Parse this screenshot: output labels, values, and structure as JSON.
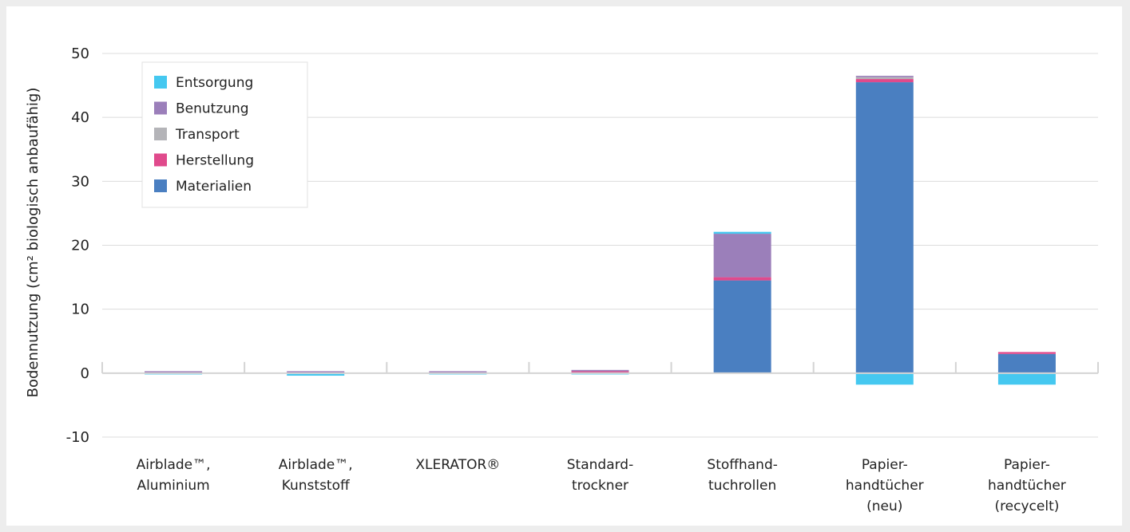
{
  "chart_data": {
    "type": "bar",
    "stacked": true,
    "ylabel": "Bodennutzung (cm² biologisch anbaufähig)",
    "ylim": [
      -10,
      50
    ],
    "yticks": [
      -10,
      0,
      10,
      20,
      30,
      40,
      50
    ],
    "grid": true,
    "legend_position": "top-left",
    "categories": [
      [
        "Airblade™,",
        "Aluminium"
      ],
      [
        "Airblade™,",
        "Kunststoff"
      ],
      [
        "XLERATOR®"
      ],
      [
        "Standard-",
        "trockner"
      ],
      [
        "Stoffhand-",
        "tuchrollen"
      ],
      [
        "Papier-",
        "handtücher",
        "(neu)"
      ],
      [
        "Papier-",
        "handtücher",
        "(recycelt)"
      ]
    ],
    "series": [
      {
        "name": "Materialien",
        "color": "#4a7fc1",
        "values": [
          0.1,
          0.1,
          0.1,
          0.2,
          14.5,
          45.5,
          3.0
        ]
      },
      {
        "name": "Herstellung",
        "color": "#e04a8c",
        "values": [
          0.1,
          0.1,
          0.1,
          0.1,
          0.5,
          0.5,
          0.3
        ]
      },
      {
        "name": "Transport",
        "color": "#b4b4b8",
        "values": [
          0.0,
          0.0,
          0.0,
          0.0,
          0.0,
          0.3,
          0.0
        ]
      },
      {
        "name": "Benutzung",
        "color": "#9b7fba",
        "values": [
          0.1,
          0.1,
          0.1,
          0.2,
          6.8,
          0.2,
          0.0
        ]
      },
      {
        "name": "Entsorgung",
        "color": "#45c8f0",
        "values": [
          -0.2,
          -0.4,
          -0.2,
          -0.2,
          0.3,
          -1.8,
          -1.8
        ]
      }
    ],
    "legend_order": [
      "Entsorgung",
      "Benutzung",
      "Transport",
      "Herstellung",
      "Materialien"
    ]
  }
}
